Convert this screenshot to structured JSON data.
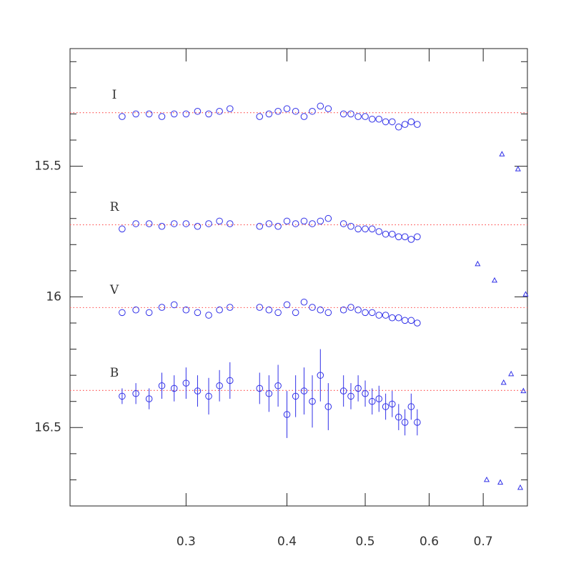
{
  "chart_data": {
    "type": "scatter",
    "xscale": "log",
    "xlim": [
      0.2155,
      0.794
    ],
    "ylim": [
      16.8,
      15.05
    ],
    "xticks": [
      0.3,
      0.4,
      0.5,
      0.6,
      0.7
    ],
    "yticks": [
      15.5,
      16,
      16.5
    ],
    "yminor": [
      15.1,
      15.2,
      15.3,
      15.4,
      15.6,
      15.7,
      15.8,
      15.9,
      16.1,
      16.2,
      16.3,
      16.4,
      16.6,
      16.7
    ],
    "color": "#3030e8",
    "reference_color": "#ff5a5a",
    "x": [
      0.25,
      0.26,
      0.27,
      0.28,
      0.29,
      0.3,
      0.31,
      0.32,
      0.33,
      0.34,
      0.37,
      0.38,
      0.39,
      0.4,
      0.41,
      0.42,
      0.43,
      0.44,
      0.45,
      0.47,
      0.48,
      0.49,
      0.5,
      0.51,
      0.52,
      0.53,
      0.54,
      0.55,
      0.56,
      0.57,
      0.58
    ],
    "series": [
      {
        "name": "I",
        "reference": 15.295,
        "values": [
          15.31,
          15.3,
          15.3,
          15.31,
          15.3,
          15.3,
          15.29,
          15.3,
          15.29,
          15.28,
          15.31,
          15.3,
          15.29,
          15.28,
          15.29,
          15.31,
          15.29,
          15.27,
          15.28,
          15.3,
          15.3,
          15.31,
          15.31,
          15.32,
          15.32,
          15.33,
          15.33,
          15.35,
          15.34,
          15.33,
          15.34
        ]
      },
      {
        "name": "R",
        "reference": 15.724,
        "values": [
          15.74,
          15.72,
          15.72,
          15.73,
          15.72,
          15.72,
          15.73,
          15.72,
          15.71,
          15.72,
          15.73,
          15.72,
          15.73,
          15.71,
          15.72,
          15.71,
          15.72,
          15.71,
          15.7,
          15.72,
          15.73,
          15.74,
          15.74,
          15.74,
          15.75,
          15.76,
          15.76,
          15.77,
          15.77,
          15.78,
          15.77
        ]
      },
      {
        "name": "V",
        "reference": 16.041,
        "values": [
          16.06,
          16.05,
          16.06,
          16.04,
          16.03,
          16.05,
          16.06,
          16.07,
          16.05,
          16.04,
          16.04,
          16.05,
          16.06,
          16.03,
          16.06,
          16.02,
          16.04,
          16.05,
          16.06,
          16.05,
          16.04,
          16.05,
          16.06,
          16.06,
          16.07,
          16.07,
          16.08,
          16.08,
          16.09,
          16.09,
          16.1
        ]
      },
      {
        "name": "B",
        "reference": 16.358,
        "values": [
          16.38,
          16.37,
          16.39,
          16.34,
          16.35,
          16.33,
          16.36,
          16.38,
          16.34,
          16.32,
          16.35,
          16.37,
          16.34,
          16.45,
          16.38,
          16.36,
          16.4,
          16.3,
          16.42,
          16.36,
          16.38,
          16.35,
          16.37,
          16.4,
          16.39,
          16.42,
          16.41,
          16.46,
          16.48,
          16.42,
          16.48
        ],
        "errors": [
          0.03,
          0.04,
          0.04,
          0.05,
          0.05,
          0.06,
          0.06,
          0.07,
          0.06,
          0.07,
          0.06,
          0.07,
          0.08,
          0.09,
          0.08,
          0.09,
          0.1,
          0.1,
          0.09,
          0.06,
          0.05,
          0.05,
          0.05,
          0.05,
          0.05,
          0.05,
          0.05,
          0.05,
          0.05,
          0.05,
          0.05
        ]
      }
    ],
    "comparison": {
      "marker": "triangle",
      "x": [
        0.7385,
        0.773,
        0.689,
        0.723,
        0.79,
        0.758,
        0.742,
        0.785,
        0.707,
        0.735,
        0.778
      ],
      "values": [
        15.454,
        15.511,
        15.874,
        15.937,
        15.99,
        16.295,
        16.328,
        16.36,
        16.7,
        16.71,
        16.73
      ]
    }
  }
}
